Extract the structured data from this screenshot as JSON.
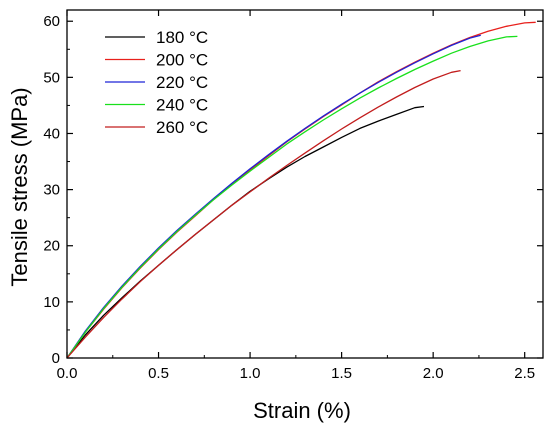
{
  "chart_data": {
    "type": "line",
    "title": "",
    "xlabel": "Strain (%)",
    "ylabel": "Tensile stress (MPa)",
    "xlim": [
      0.0,
      2.6
    ],
    "ylim": [
      0,
      62
    ],
    "xticks": [
      0.0,
      0.5,
      1.0,
      1.5,
      2.0,
      2.5
    ],
    "xtick_labels": [
      "0.0",
      "0.5",
      "1.0",
      "1.5",
      "2.0",
      "2.5"
    ],
    "yticks": [
      0,
      10,
      20,
      30,
      40,
      50,
      60
    ],
    "ytick_labels": [
      "0",
      "10",
      "20",
      "30",
      "40",
      "50",
      "60"
    ],
    "grid": false,
    "legend_position": "top-left",
    "series": [
      {
        "name": "180 °C",
        "color": "#000000",
        "x": [
          0.0,
          0.1,
          0.2,
          0.3,
          0.4,
          0.5,
          0.6,
          0.7,
          0.8,
          0.9,
          1.0,
          1.1,
          1.2,
          1.3,
          1.4,
          1.5,
          1.6,
          1.7,
          1.8,
          1.9,
          1.95
        ],
        "y": [
          0,
          4.1,
          7.6,
          10.7,
          13.7,
          16.5,
          19.3,
          22.0,
          24.6,
          27.2,
          29.7,
          31.9,
          34.0,
          35.9,
          37.6,
          39.3,
          40.9,
          42.2,
          43.4,
          44.6,
          44.8
        ]
      },
      {
        "name": "200 °C",
        "color": "#e8201c",
        "x": [
          0.0,
          0.1,
          0.2,
          0.3,
          0.4,
          0.5,
          0.6,
          0.7,
          0.8,
          0.9,
          1.0,
          1.1,
          1.2,
          1.3,
          1.4,
          1.5,
          1.6,
          1.7,
          1.8,
          1.9,
          2.0,
          2.1,
          2.2,
          2.3,
          2.4,
          2.5,
          2.56
        ],
        "y": [
          0,
          4.6,
          8.7,
          12.5,
          16.0,
          19.3,
          22.4,
          25.3,
          28.2,
          30.9,
          33.5,
          36.0,
          38.5,
          40.8,
          43.0,
          45.1,
          47.2,
          49.2,
          51.0,
          52.7,
          54.3,
          55.8,
          57.1,
          58.2,
          59.1,
          59.7,
          59.8
        ]
      },
      {
        "name": "220 °C",
        "color": "#1f24d6",
        "x": [
          0.0,
          0.1,
          0.2,
          0.3,
          0.4,
          0.5,
          0.6,
          0.7,
          0.8,
          0.9,
          1.0,
          1.1,
          1.2,
          1.3,
          1.4,
          1.5,
          1.6,
          1.7,
          1.8,
          1.9,
          2.0,
          2.1,
          2.2,
          2.26
        ],
        "y": [
          0,
          4.8,
          9.0,
          12.8,
          16.3,
          19.6,
          22.7,
          25.6,
          28.4,
          31.1,
          33.7,
          36.2,
          38.6,
          40.9,
          43.1,
          45.2,
          47.2,
          49.1,
          50.9,
          52.6,
          54.2,
          55.7,
          57.0,
          57.5
        ]
      },
      {
        "name": "240 °C",
        "color": "#19e01c",
        "x": [
          0.0,
          0.1,
          0.2,
          0.3,
          0.4,
          0.5,
          0.6,
          0.7,
          0.8,
          0.9,
          1.0,
          1.1,
          1.2,
          1.3,
          1.4,
          1.5,
          1.6,
          1.7,
          1.8,
          1.9,
          2.0,
          2.1,
          2.2,
          2.3,
          2.4,
          2.46
        ],
        "y": [
          0,
          4.6,
          8.8,
          12.6,
          16.1,
          19.4,
          22.5,
          25.4,
          28.2,
          30.8,
          33.3,
          35.7,
          38.1,
          40.3,
          42.4,
          44.4,
          46.3,
          48.1,
          49.8,
          51.4,
          52.9,
          54.3,
          55.5,
          56.5,
          57.2,
          57.3
        ]
      },
      {
        "name": "260 °C",
        "color": "#c21d1d",
        "x": [
          0.0,
          0.1,
          0.2,
          0.3,
          0.4,
          0.5,
          0.6,
          0.7,
          0.8,
          0.9,
          1.0,
          1.1,
          1.2,
          1.3,
          1.4,
          1.5,
          1.6,
          1.7,
          1.8,
          1.9,
          2.0,
          2.1,
          2.15
        ],
        "y": [
          0,
          3.7,
          7.2,
          10.5,
          13.6,
          16.5,
          19.3,
          22.0,
          24.6,
          27.2,
          29.6,
          32.0,
          34.3,
          36.5,
          38.7,
          40.8,
          42.8,
          44.7,
          46.5,
          48.2,
          49.7,
          50.9,
          51.2
        ]
      }
    ]
  }
}
